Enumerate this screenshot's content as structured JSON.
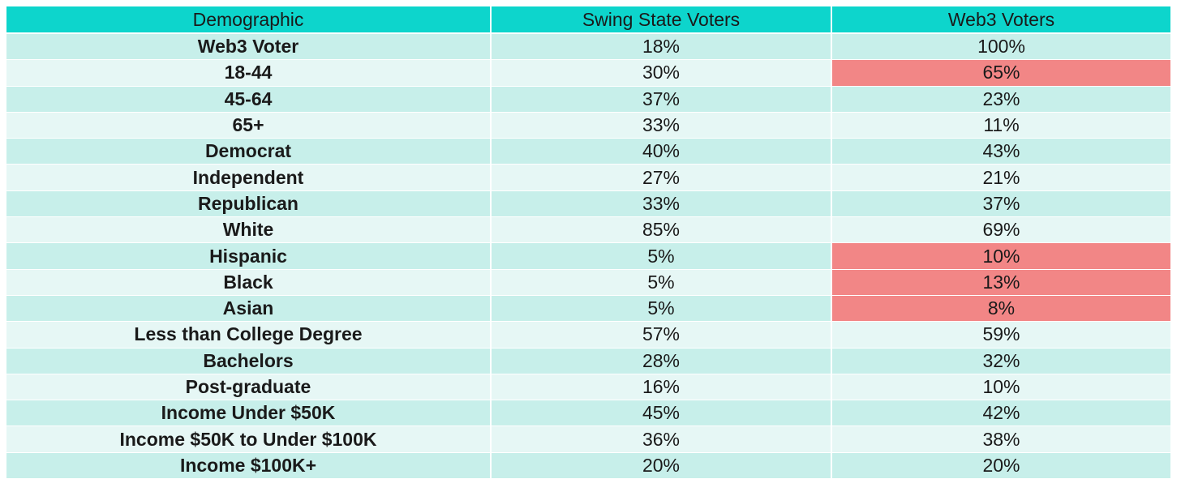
{
  "table": {
    "headers": [
      "Demographic",
      "Swing State Voters",
      "Web3 Voters"
    ],
    "highlight_color": "#f28686",
    "header_color": "#0dd5cc",
    "rows": [
      {
        "label": "Web3 Voter",
        "swing": "18%",
        "web3": "100%",
        "web3_highlight": false
      },
      {
        "label": "18-44",
        "swing": "30%",
        "web3": "65%",
        "web3_highlight": true
      },
      {
        "label": "45-64",
        "swing": "37%",
        "web3": "23%",
        "web3_highlight": false
      },
      {
        "label": "65+",
        "swing": "33%",
        "web3": "11%",
        "web3_highlight": false
      },
      {
        "label": "Democrat",
        "swing": "40%",
        "web3": "43%",
        "web3_highlight": false
      },
      {
        "label": "Independent",
        "swing": "27%",
        "web3": "21%",
        "web3_highlight": false
      },
      {
        "label": "Republican",
        "swing": "33%",
        "web3": "37%",
        "web3_highlight": false
      },
      {
        "label": "White",
        "swing": "85%",
        "web3": "69%",
        "web3_highlight": false
      },
      {
        "label": "Hispanic",
        "swing": "5%",
        "web3": "10%",
        "web3_highlight": true
      },
      {
        "label": "Black",
        "swing": "5%",
        "web3": "13%",
        "web3_highlight": true
      },
      {
        "label": "Asian",
        "swing": "5%",
        "web3": "8%",
        "web3_highlight": true
      },
      {
        "label": "Less than College Degree",
        "swing": "57%",
        "web3": "59%",
        "web3_highlight": false
      },
      {
        "label": "Bachelors",
        "swing": "28%",
        "web3": "32%",
        "web3_highlight": false
      },
      {
        "label": "Post-graduate",
        "swing": "16%",
        "web3": "10%",
        "web3_highlight": false
      },
      {
        "label": "Income Under $50K",
        "swing": "45%",
        "web3": "42%",
        "web3_highlight": false
      },
      {
        "label": "Income $50K to Under $100K",
        "swing": "36%",
        "web3": "38%",
        "web3_highlight": false
      },
      {
        "label": "Income $100K+",
        "swing": "20%",
        "web3": "20%",
        "web3_highlight": false
      }
    ]
  }
}
